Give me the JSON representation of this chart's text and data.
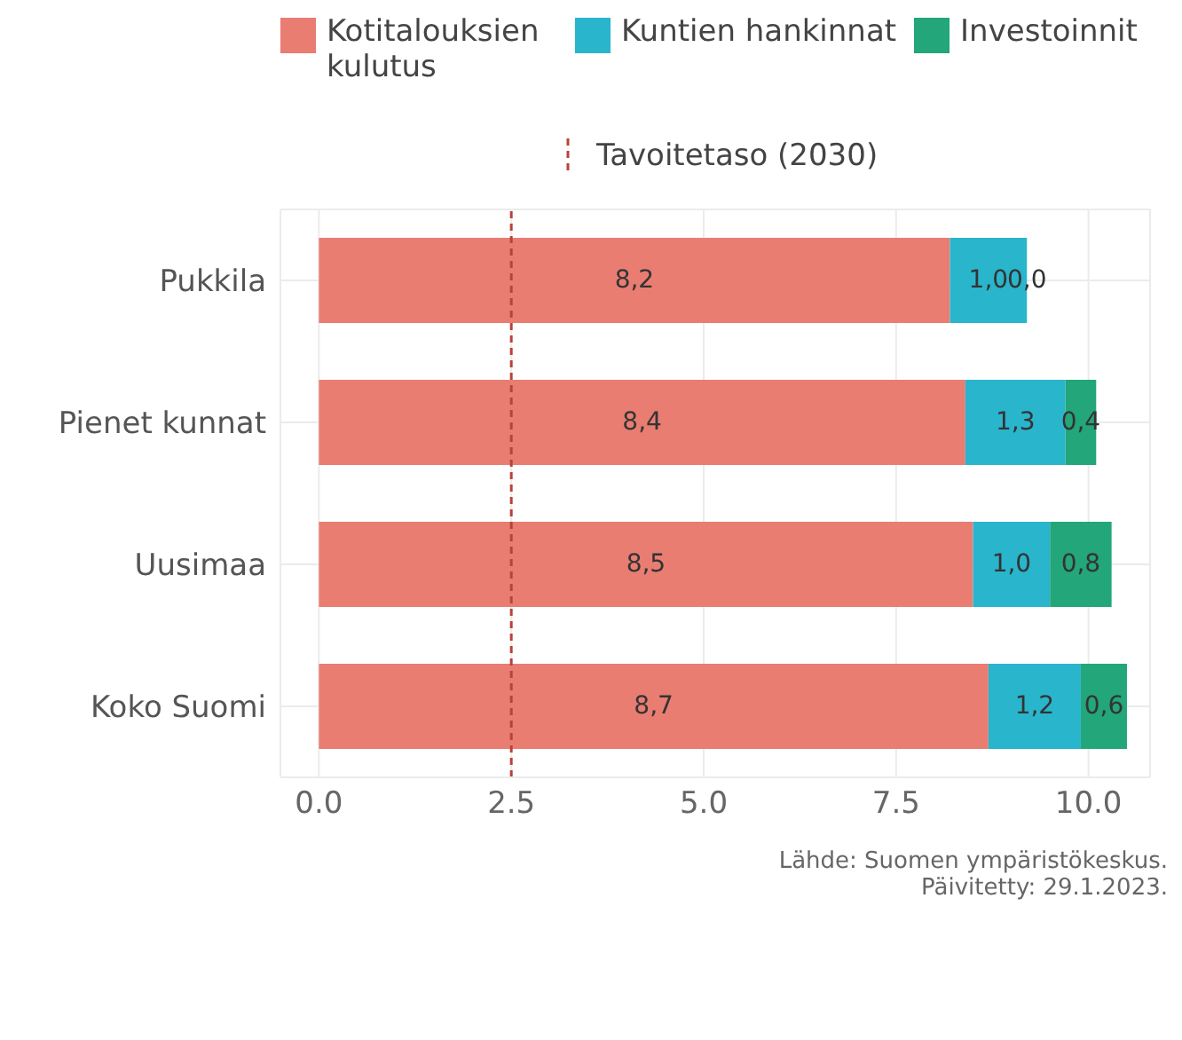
{
  "chart_data": {
    "type": "bar",
    "orientation": "horizontal",
    "stacked": true,
    "categories": [
      "Pukkila",
      "Pienet kunnat",
      "Uusimaa",
      "Koko Suomi"
    ],
    "series": [
      {
        "name": "Kotitalouksien kulutus",
        "color": "#e97d72",
        "values": [
          8.2,
          8.4,
          8.5,
          8.7
        ],
        "value_labels": [
          "8,2",
          "8,4",
          "8,5",
          "8,7"
        ]
      },
      {
        "name": "Kuntien hankinnat",
        "color": "#29b5cc",
        "values": [
          1.0,
          1.3,
          1.0,
          1.2
        ],
        "value_labels": [
          "1,0",
          "1,3",
          "1,0",
          "1,2"
        ]
      },
      {
        "name": "Investoinnit",
        "color": "#22a67a",
        "values": [
          0.0,
          0.4,
          0.8,
          0.6
        ],
        "value_labels": [
          "0,0",
          "0,4",
          "0,8",
          "0,6"
        ]
      }
    ],
    "xlim": [
      -0.5,
      10.8
    ],
    "xticks": [
      {
        "value": 0,
        "label": "0.0"
      },
      {
        "value": 2.5,
        "label": "2.5"
      },
      {
        "value": 5,
        "label": "5.0"
      },
      {
        "value": 7.5,
        "label": "7.5"
      },
      {
        "value": 10,
        "label": "10.0"
      }
    ],
    "ref_lines": [
      {
        "axis": "x",
        "value": 2.5,
        "label": "Tavoitetaso (2030)",
        "color": "#b5443a",
        "line_style": "dashed"
      }
    ],
    "grid": true,
    "legend": "top",
    "annotations": [
      "Lähde: Suomen ympäristökeskus.",
      "Päivitetty: 29.1.2023."
    ]
  }
}
